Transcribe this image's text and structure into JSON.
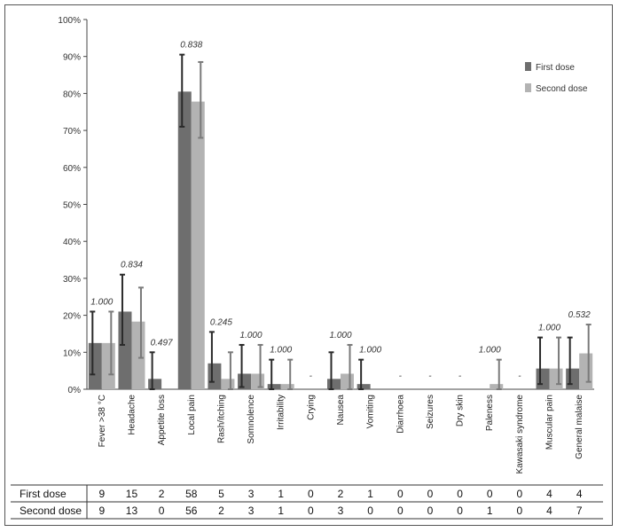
{
  "chart_data": {
    "type": "bar",
    "ylim": [
      0,
      100
    ],
    "y_ticks": [
      "0%",
      "10%",
      "20%",
      "30%",
      "40%",
      "50%",
      "60%",
      "70%",
      "80%",
      "90%",
      "100%"
    ],
    "grid": false,
    "legend_position": "top-right",
    "categories": [
      "Fever >38 °C",
      "Headache",
      "Appetite loss",
      "Local pain",
      "Rash/itching",
      "Somnolence",
      "Irritability",
      "Crying",
      "Nausea",
      "Vomiting",
      "Diarrhoea",
      "Seizures",
      "Dry skin",
      "Paleness",
      "Kawasaki syndrome",
      "Muscular pain",
      "General malaise"
    ],
    "series": [
      {
        "name": "First dose",
        "color": "#6e6e6e",
        "values": [
          12.5,
          21,
          2.8,
          80.5,
          7,
          4.2,
          1.4,
          0,
          2.8,
          1.4,
          0,
          0,
          0,
          0,
          0,
          5.6,
          5.6
        ],
        "error_low": [
          4,
          12,
          0,
          71,
          2,
          0.6,
          0,
          0,
          0,
          0,
          0,
          0,
          0,
          0,
          0,
          1.4,
          1.4
        ],
        "error_high": [
          21,
          31,
          10,
          90.5,
          15.5,
          12,
          8,
          0,
          10,
          8,
          0,
          0,
          0,
          0,
          0,
          14,
          14
        ]
      },
      {
        "name": "Second dose",
        "color": "#b3b3b3",
        "values": [
          12.5,
          18.3,
          0,
          77.8,
          2.8,
          4.2,
          1.4,
          0,
          4.2,
          0,
          0,
          0,
          0,
          1.4,
          0,
          5.6,
          9.7
        ],
        "error_low": [
          4,
          8.5,
          0,
          68,
          0,
          0.6,
          0,
          0,
          0,
          0,
          0,
          0,
          0,
          0,
          0,
          1.4,
          2
        ],
        "error_high": [
          21,
          27.5,
          0,
          88.5,
          10,
          12,
          8,
          0,
          12,
          0,
          0,
          0,
          0,
          8,
          0,
          14,
          17.5
        ]
      }
    ],
    "p_values": [
      "1.000",
      "0.834",
      "0.497",
      "0.838",
      "0.245",
      "1.000",
      "1.000",
      "-",
      "1.000",
      "1.000",
      "-",
      "-",
      "-",
      "1.000",
      "-",
      "1.000",
      "0.532"
    ],
    "table": {
      "rows": [
        {
          "label": "First dose",
          "counts": [
            "9",
            "15",
            "2",
            "58",
            "5",
            "3",
            "1",
            "0",
            "2",
            "1",
            "0",
            "0",
            "0",
            "0",
            "0",
            "4",
            "4"
          ]
        },
        {
          "label": "Second dose",
          "counts": [
            "9",
            "13",
            "0",
            "56",
            "2",
            "3",
            "1",
            "0",
            "3",
            "0",
            "0",
            "0",
            "0",
            "1",
            "0",
            "4",
            "7"
          ]
        }
      ]
    }
  }
}
